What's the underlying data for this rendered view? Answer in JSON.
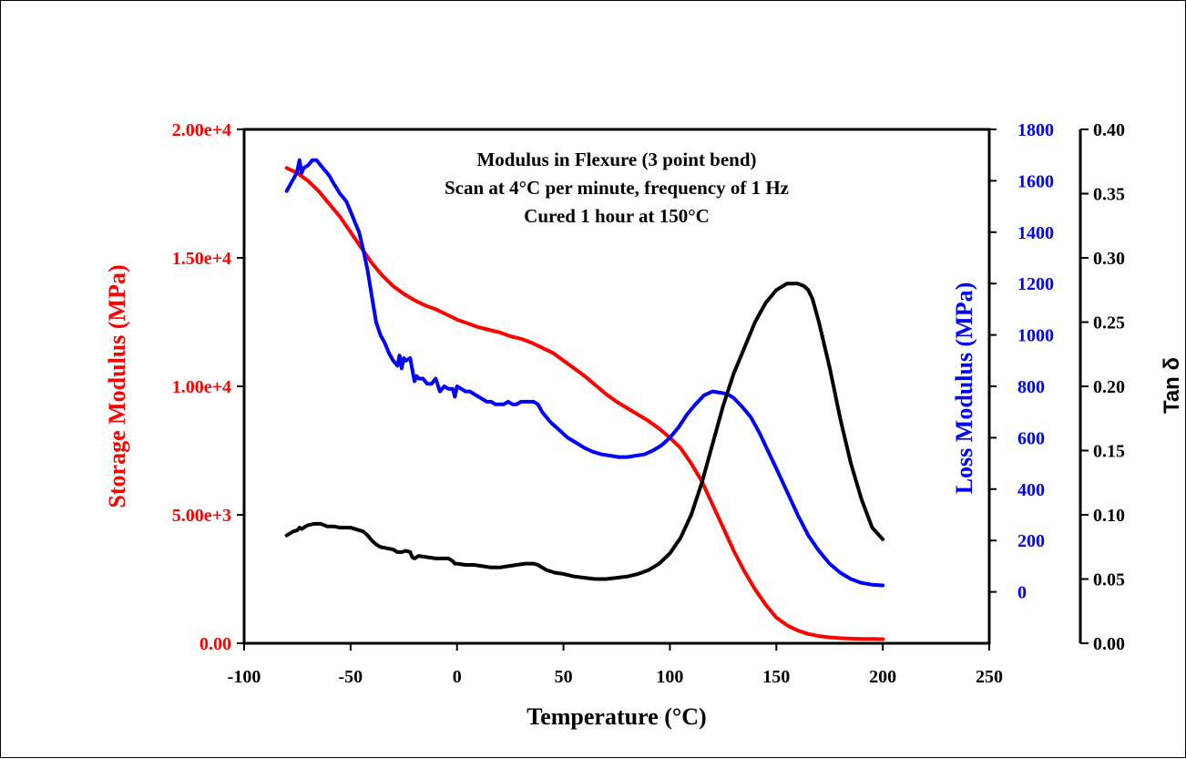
{
  "chart_data": {
    "type": "line",
    "annotations": [
      "Modulus in Flexure (3 point bend)",
      "Scan at 4°C per minute, frequency of 1 Hz",
      "Cured 1 hour at 150°C"
    ],
    "xlabel": "Temperature (°C)",
    "xlim": [
      -100,
      250
    ],
    "xticks": [
      -100,
      -50,
      0,
      50,
      100,
      150,
      200,
      250
    ],
    "axes": {
      "storage": {
        "label": "Storage Modulus (MPa)",
        "color": "#ff0000",
        "lim": [
          0,
          20000
        ],
        "ticks": [
          0,
          5000,
          10000,
          15000,
          20000
        ],
        "tick_labels": [
          "0.00",
          "5.00e+3",
          "1.00e+4",
          "1.50e+4",
          "2.00e+4"
        ]
      },
      "loss": {
        "label": "Loss Modulus (MPa)",
        "color": "#0000ff",
        "lim": [
          -200,
          1800
        ],
        "ticks": [
          0,
          200,
          400,
          600,
          800,
          1000,
          1200,
          1400,
          1600,
          1800
        ],
        "tick_labels": [
          "0",
          "200",
          "400",
          "600",
          "800",
          "1000",
          "1200",
          "1400",
          "1600",
          "1800"
        ]
      },
      "tan": {
        "label": "Tan δ",
        "color": "#000000",
        "lim": [
          0,
          0.4
        ],
        "ticks": [
          0,
          0.05,
          0.1,
          0.15,
          0.2,
          0.25,
          0.3,
          0.35,
          0.4
        ],
        "tick_labels": [
          "0.00",
          "0.05",
          "0.10",
          "0.15",
          "0.20",
          "0.25",
          "0.30",
          "0.35",
          "0.40"
        ]
      }
    },
    "series": [
      {
        "axis": "storage",
        "color": "#ff0000",
        "x": [
          -80,
          -75,
          -70,
          -65,
          -60,
          -55,
          -50,
          -45,
          -40,
          -35,
          -30,
          -25,
          -20,
          -15,
          -10,
          -5,
          0,
          5,
          10,
          15,
          20,
          25,
          30,
          35,
          40,
          45,
          50,
          55,
          60,
          65,
          70,
          75,
          80,
          85,
          90,
          95,
          100,
          105,
          110,
          115,
          120,
          125,
          130,
          135,
          140,
          145,
          150,
          155,
          160,
          165,
          170,
          175,
          180,
          185,
          190,
          195,
          200
        ],
        "y": [
          18500,
          18300,
          18000,
          17600,
          17100,
          16600,
          16000,
          15400,
          14800,
          14300,
          13900,
          13600,
          13350,
          13150,
          13000,
          12800,
          12600,
          12450,
          12300,
          12200,
          12100,
          11950,
          11850,
          11700,
          11500,
          11300,
          11000,
          10700,
          10400,
          10050,
          9700,
          9400,
          9150,
          8900,
          8650,
          8350,
          8000,
          7600,
          7000,
          6300,
          5400,
          4500,
          3600,
          2800,
          2100,
          1500,
          1000,
          700,
          500,
          360,
          280,
          230,
          200,
          180,
          170,
          165,
          160
        ]
      },
      {
        "axis": "loss",
        "color": "#0000ff",
        "x": [
          -80,
          -78,
          -76,
          -75,
          -74,
          -73,
          -72,
          -70,
          -68,
          -66,
          -64,
          -62,
          -60,
          -58,
          -55,
          -52,
          -50,
          -48,
          -46,
          -44,
          -42,
          -40,
          -38,
          -36,
          -34,
          -32,
          -30,
          -28,
          -27,
          -26,
          -25,
          -24,
          -22,
          -20,
          -19,
          -18,
          -16,
          -14,
          -12,
          -10,
          -8,
          -6,
          -4,
          -2,
          -1,
          0,
          2,
          4,
          6,
          8,
          10,
          12,
          14,
          16,
          18,
          20,
          22,
          24,
          26,
          28,
          30,
          32,
          34,
          36,
          38,
          40,
          44,
          48,
          52,
          56,
          60,
          64,
          68,
          72,
          76,
          80,
          84,
          88,
          92,
          96,
          100,
          104,
          108,
          112,
          116,
          120,
          124,
          127,
          130,
          134,
          138,
          142,
          146,
          150,
          155,
          160,
          165,
          170,
          175,
          180,
          185,
          190,
          195,
          200
        ],
        "y": [
          1560,
          1590,
          1620,
          1640,
          1680,
          1630,
          1650,
          1660,
          1680,
          1680,
          1660,
          1640,
          1620,
          1590,
          1550,
          1520,
          1480,
          1440,
          1400,
          1330,
          1250,
          1150,
          1050,
          1000,
          970,
          930,
          900,
          880,
          920,
          870,
          910,
          900,
          910,
          820,
          840,
          830,
          830,
          810,
          810,
          830,
          780,
          800,
          790,
          790,
          760,
          800,
          790,
          780,
          780,
          770,
          760,
          750,
          740,
          740,
          730,
          730,
          730,
          740,
          730,
          730,
          740,
          740,
          740,
          740,
          730,
          700,
          660,
          630,
          600,
          580,
          560,
          545,
          535,
          530,
          525,
          525,
          530,
          535,
          550,
          570,
          600,
          640,
          690,
          730,
          765,
          780,
          775,
          770,
          755,
          720,
          680,
          620,
          550,
          480,
          390,
          300,
          220,
          160,
          110,
          75,
          50,
          35,
          28,
          25
        ]
      },
      {
        "axis": "tan",
        "color": "#000000",
        "x": [
          -80,
          -77,
          -75,
          -74,
          -73,
          -70,
          -67,
          -64,
          -61,
          -58,
          -55,
          -50,
          -46,
          -44,
          -42,
          -40,
          -38,
          -36,
          -33,
          -30,
          -28,
          -26,
          -24,
          -22,
          -21,
          -20,
          -18,
          -14,
          -10,
          -8,
          -6,
          -4,
          -2,
          -1,
          0,
          4,
          8,
          12,
          16,
          20,
          24,
          28,
          32,
          36,
          38,
          42,
          46,
          50,
          55,
          60,
          65,
          70,
          75,
          80,
          85,
          90,
          95,
          100,
          105,
          110,
          115,
          120,
          125,
          130,
          135,
          140,
          145,
          150,
          155,
          160,
          163,
          165,
          167,
          170,
          175,
          180,
          185,
          190,
          195,
          200
        ],
        "y": [
          0.084,
          0.087,
          0.088,
          0.09,
          0.089,
          0.092,
          0.093,
          0.093,
          0.091,
          0.091,
          0.09,
          0.09,
          0.088,
          0.087,
          0.084,
          0.08,
          0.077,
          0.075,
          0.074,
          0.073,
          0.071,
          0.071,
          0.072,
          0.071,
          0.067,
          0.066,
          0.068,
          0.067,
          0.066,
          0.066,
          0.066,
          0.066,
          0.064,
          0.062,
          0.062,
          0.061,
          0.061,
          0.06,
          0.059,
          0.059,
          0.06,
          0.061,
          0.062,
          0.062,
          0.061,
          0.057,
          0.055,
          0.054,
          0.052,
          0.051,
          0.05,
          0.05,
          0.051,
          0.052,
          0.054,
          0.057,
          0.062,
          0.07,
          0.082,
          0.1,
          0.125,
          0.155,
          0.185,
          0.21,
          0.23,
          0.25,
          0.265,
          0.275,
          0.28,
          0.28,
          0.278,
          0.275,
          0.268,
          0.25,
          0.215,
          0.175,
          0.14,
          0.112,
          0.09,
          0.081
        ]
      }
    ]
  }
}
